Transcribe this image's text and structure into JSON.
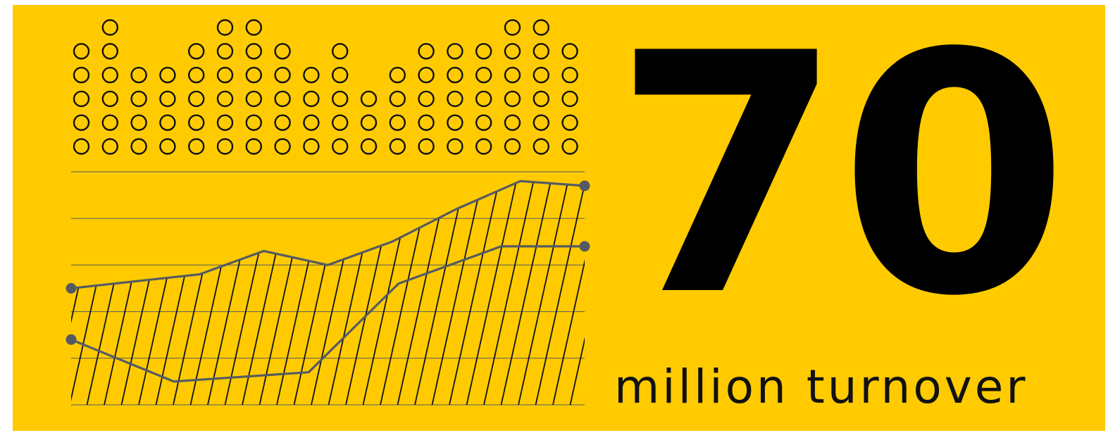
{
  "headline": {
    "number": "70",
    "caption": "million turnover"
  },
  "colors": {
    "background": "#FFCB00",
    "number": "#000000",
    "caption": "#111111",
    "series_line": "#555A62",
    "gridline": "#55595E",
    "hatch": "#111111",
    "circle": "#111111"
  },
  "chart_data": [
    {
      "type": "scatter",
      "title": "",
      "xlabel": "",
      "ylabel": "",
      "marker": "open-circle",
      "x": [
        1,
        2,
        3,
        4,
        5,
        6,
        7,
        8,
        9,
        10,
        11,
        12,
        13,
        14,
        15,
        16,
        17,
        18
      ],
      "values": [
        5,
        6,
        4,
        4,
        5,
        6,
        6,
        5,
        4,
        5,
        3,
        4,
        5,
        5,
        5,
        6,
        6,
        5
      ],
      "ylim": [
        0,
        6
      ]
    },
    {
      "type": "area",
      "title": "",
      "xlabel": "",
      "ylabel": "",
      "grid": true,
      "legend": "none",
      "xlim": [
        0,
        8
      ],
      "ylim": [
        0,
        5
      ],
      "series": [
        {
          "x": [
            0,
            2,
            3,
            4,
            5,
            6,
            7,
            8
          ],
          "values": [
            2.5,
            2.8,
            3.3,
            3.0,
            3.5,
            4.2,
            4.8,
            4.7
          ]
        },
        {
          "x": [
            0,
            1.6,
            3.7,
            5.1,
            6.7,
            8
          ],
          "values": [
            1.4,
            0.5,
            0.7,
            2.6,
            3.4,
            3.4
          ]
        }
      ]
    }
  ]
}
